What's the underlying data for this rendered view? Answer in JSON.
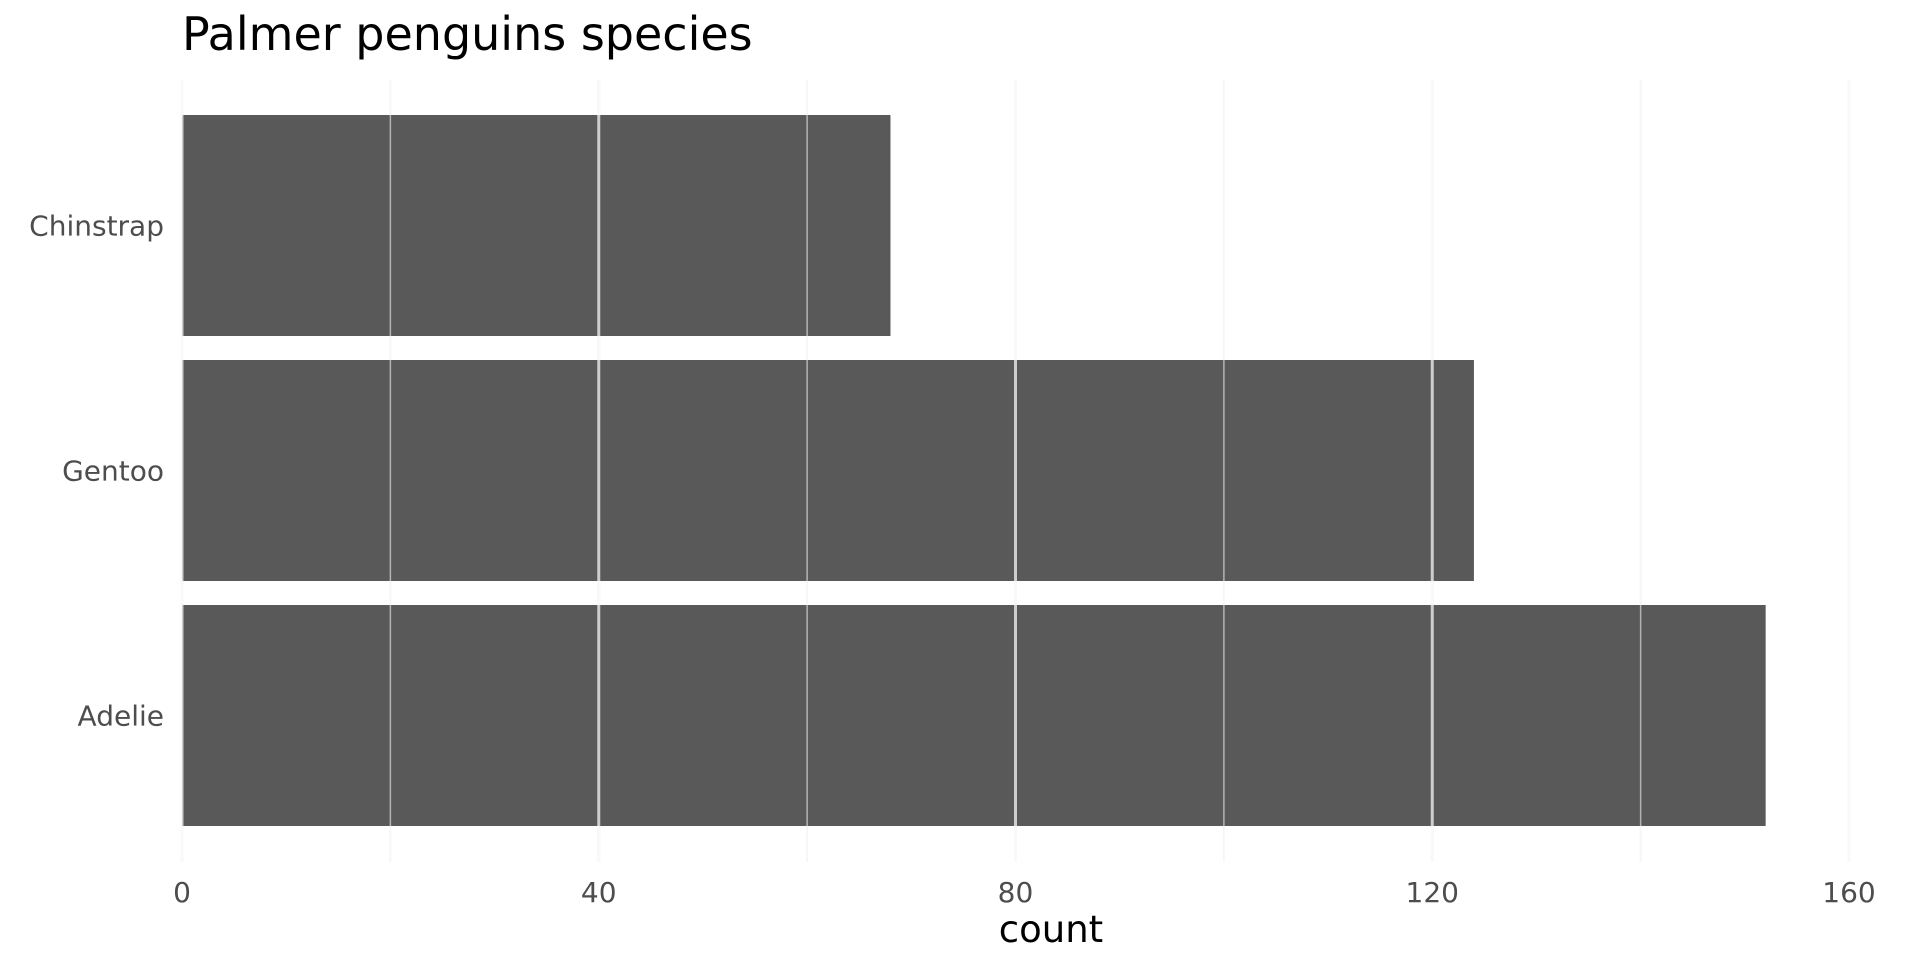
{
  "chart_data": {
    "type": "bar",
    "orientation": "horizontal",
    "title": "Palmer penguins species",
    "xlabel": "count",
    "ylabel": "",
    "categories": [
      "Adelie",
      "Gentoo",
      "Chinstrap"
    ],
    "values": [
      152,
      124,
      68
    ],
    "xlim": [
      0,
      160
    ],
    "x_ticks": [
      0,
      40,
      80,
      120,
      160
    ],
    "x_minor_ticks": [
      20,
      60,
      100,
      140
    ],
    "grid": true,
    "legend": "none",
    "colors": {
      "bar": "#595959",
      "grid_major": "#ebebeb",
      "grid_minor": "#ebebeb",
      "background": "#ffffff"
    }
  }
}
